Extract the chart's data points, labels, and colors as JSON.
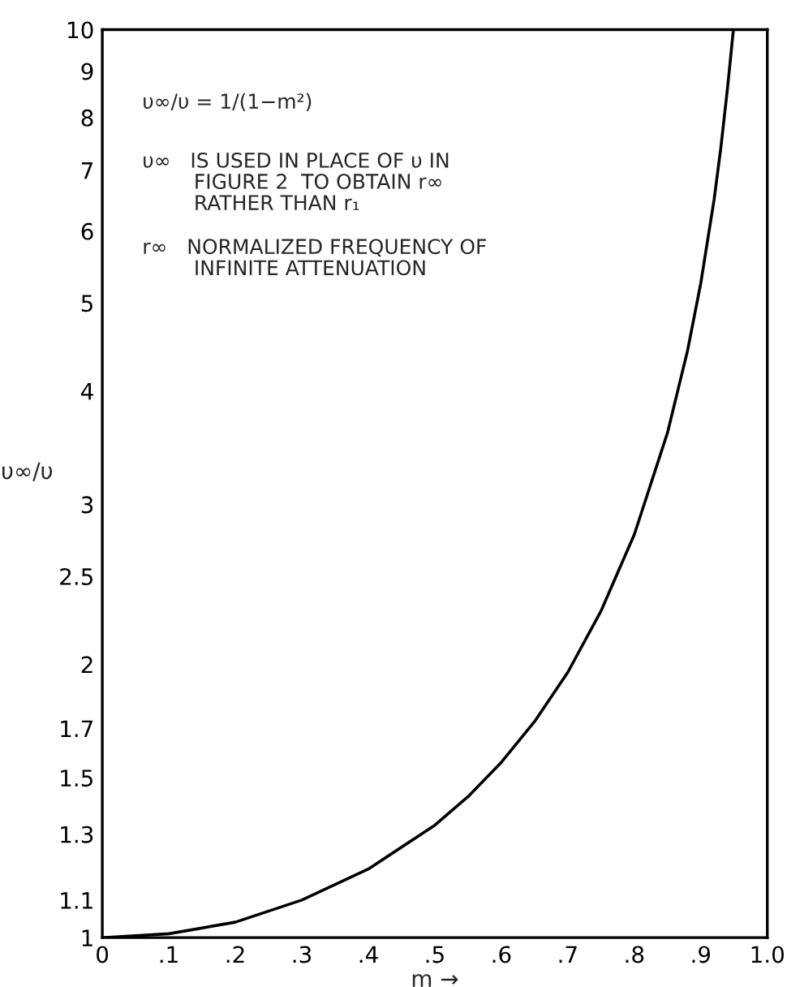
{
  "chart_data": {
    "type": "line",
    "xlabel": "m →",
    "ylabel": "υ∞/υ",
    "x": [
      0,
      0.1,
      0.2,
      0.3,
      0.4,
      0.5,
      0.55,
      0.6,
      0.65,
      0.7,
      0.75,
      0.8,
      0.85,
      0.88,
      0.9,
      0.92,
      0.93,
      0.94,
      0.949
    ],
    "series": [
      {
        "color": "#000000",
        "values": [
          1.0,
          1.01,
          1.04,
          1.1,
          1.19,
          1.33,
          1.43,
          1.56,
          1.73,
          1.96,
          2.29,
          2.78,
          3.6,
          4.43,
          5.26,
          6.5,
          7.4,
          8.6,
          10.0
        ]
      }
    ],
    "log": "y",
    "xlim": [
      0,
      1.0
    ],
    "ylim": [
      1,
      10
    ],
    "xticks": [
      0,
      {
        "value": 0.1,
        "label": ".1"
      },
      {
        "value": 0.2,
        "label": ".2"
      },
      {
        "value": 0.3,
        "label": ".3"
      },
      {
        "value": 0.4,
        "label": ".4"
      },
      {
        "value": 0.5,
        "label": ".5"
      },
      {
        "value": 0.6,
        "label": ".6"
      },
      {
        "value": 0.7,
        "label": ".7"
      },
      {
        "value": 0.8,
        "label": ".8"
      },
      {
        "value": 0.9,
        "label": ".9"
      },
      {
        "value": 1.0,
        "label": "1.0"
      }
    ],
    "yticks": [
      1,
      1.1,
      1.3,
      1.5,
      1.7,
      2,
      2.5,
      3,
      4,
      5,
      6,
      7,
      8,
      9,
      10
    ],
    "grid": false,
    "marker": "none",
    "line_style": "solid",
    "annotations": [
      "υ∞/υ = 1/(1−m²)",
      "υ∞   IS USED IN PLACE OF υ IN\n        FIGURE 2  TO OBTAIN r∞\n        RATHER THAN r₁",
      "r∞   NORMALIZED FREQUENCY OF\n        INFINITE ATTENUATION"
    ]
  }
}
